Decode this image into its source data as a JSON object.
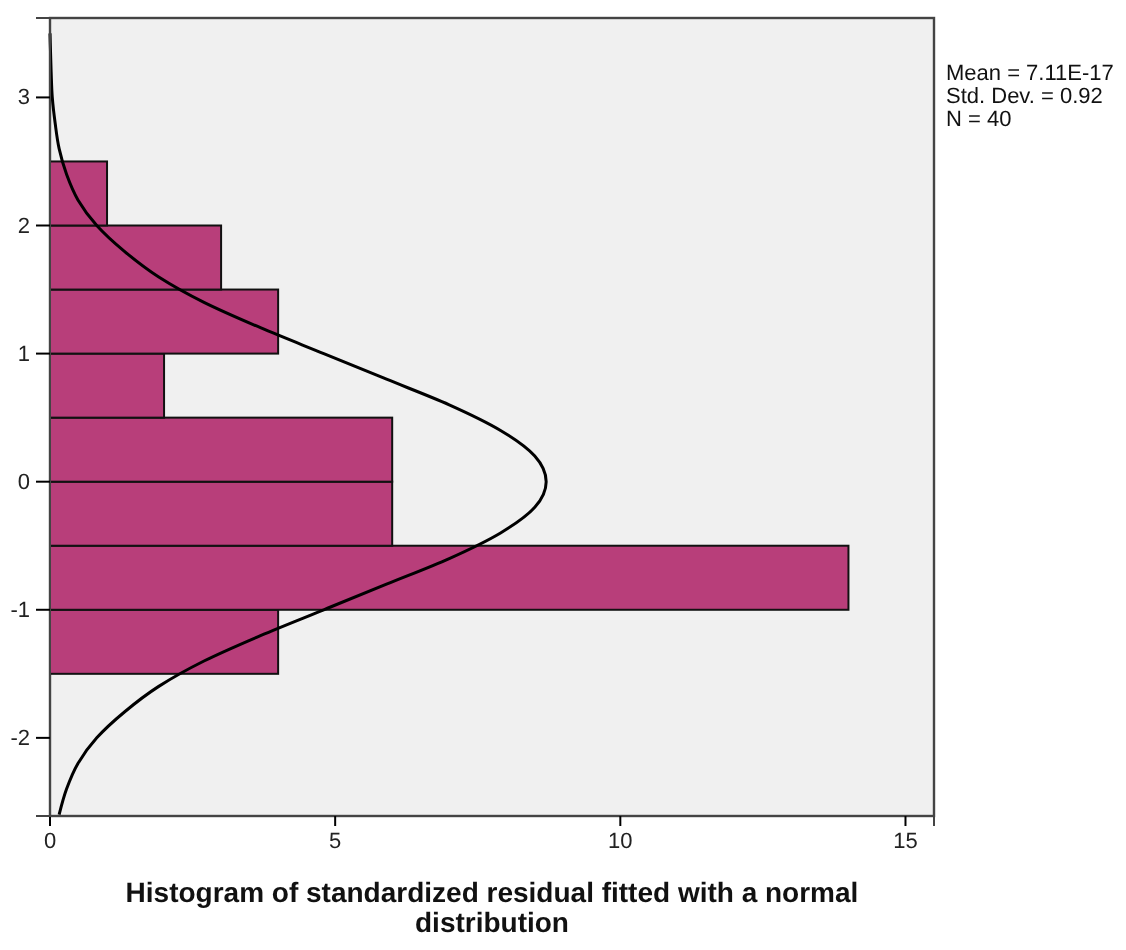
{
  "chart_data": {
    "type": "histogram",
    "orientation": "horizontal",
    "title": "Histogram of standardized residual fitted with a normal distribution",
    "bins": [
      -1.5,
      -1,
      -0.5,
      0,
      0.5,
      1,
      1.5,
      2,
      2.5
    ],
    "values": [
      4,
      14,
      6,
      6,
      2,
      4,
      3,
      1
    ],
    "color": "#b83e7a",
    "series": [
      {
        "type": "line",
        "color": "#000000",
        "x": [
          -2.6,
          -2.4,
          -2.2,
          -2.0,
          -1.8,
          -1.6,
          -1.4,
          -1.2,
          -1.0,
          -0.8,
          -0.6,
          -0.4,
          -0.2,
          0,
          0.2,
          0.4,
          0.6,
          0.8,
          1.0,
          1.2,
          1.4,
          1.6,
          1.8,
          2.0,
          2.2,
          2.4,
          2.6,
          2.8,
          3.0,
          3.2,
          3.5
        ],
        "values": [
          0.16,
          0.29,
          0.49,
          0.82,
          1.3,
          1.9,
          2.7,
          3.7,
          4.8,
          5.9,
          7.0,
          7.9,
          8.5,
          8.7,
          8.5,
          7.9,
          7.0,
          5.9,
          4.8,
          3.7,
          2.7,
          1.9,
          1.3,
          0.82,
          0.49,
          0.29,
          0.16,
          0.09,
          0.04,
          0.02,
          0
        ]
      }
    ],
    "xlim": [
      0,
      15.5
    ],
    "xticks": [
      0,
      5,
      10,
      15
    ],
    "ylim": [
      -2.61,
      3.62
    ],
    "yticks": [
      -2,
      -1,
      0,
      1,
      2,
      3
    ],
    "annotations": [
      "Mean = 7.11E-17",
      "Std. Dev. = 0.92",
      "N = 40"
    ]
  }
}
